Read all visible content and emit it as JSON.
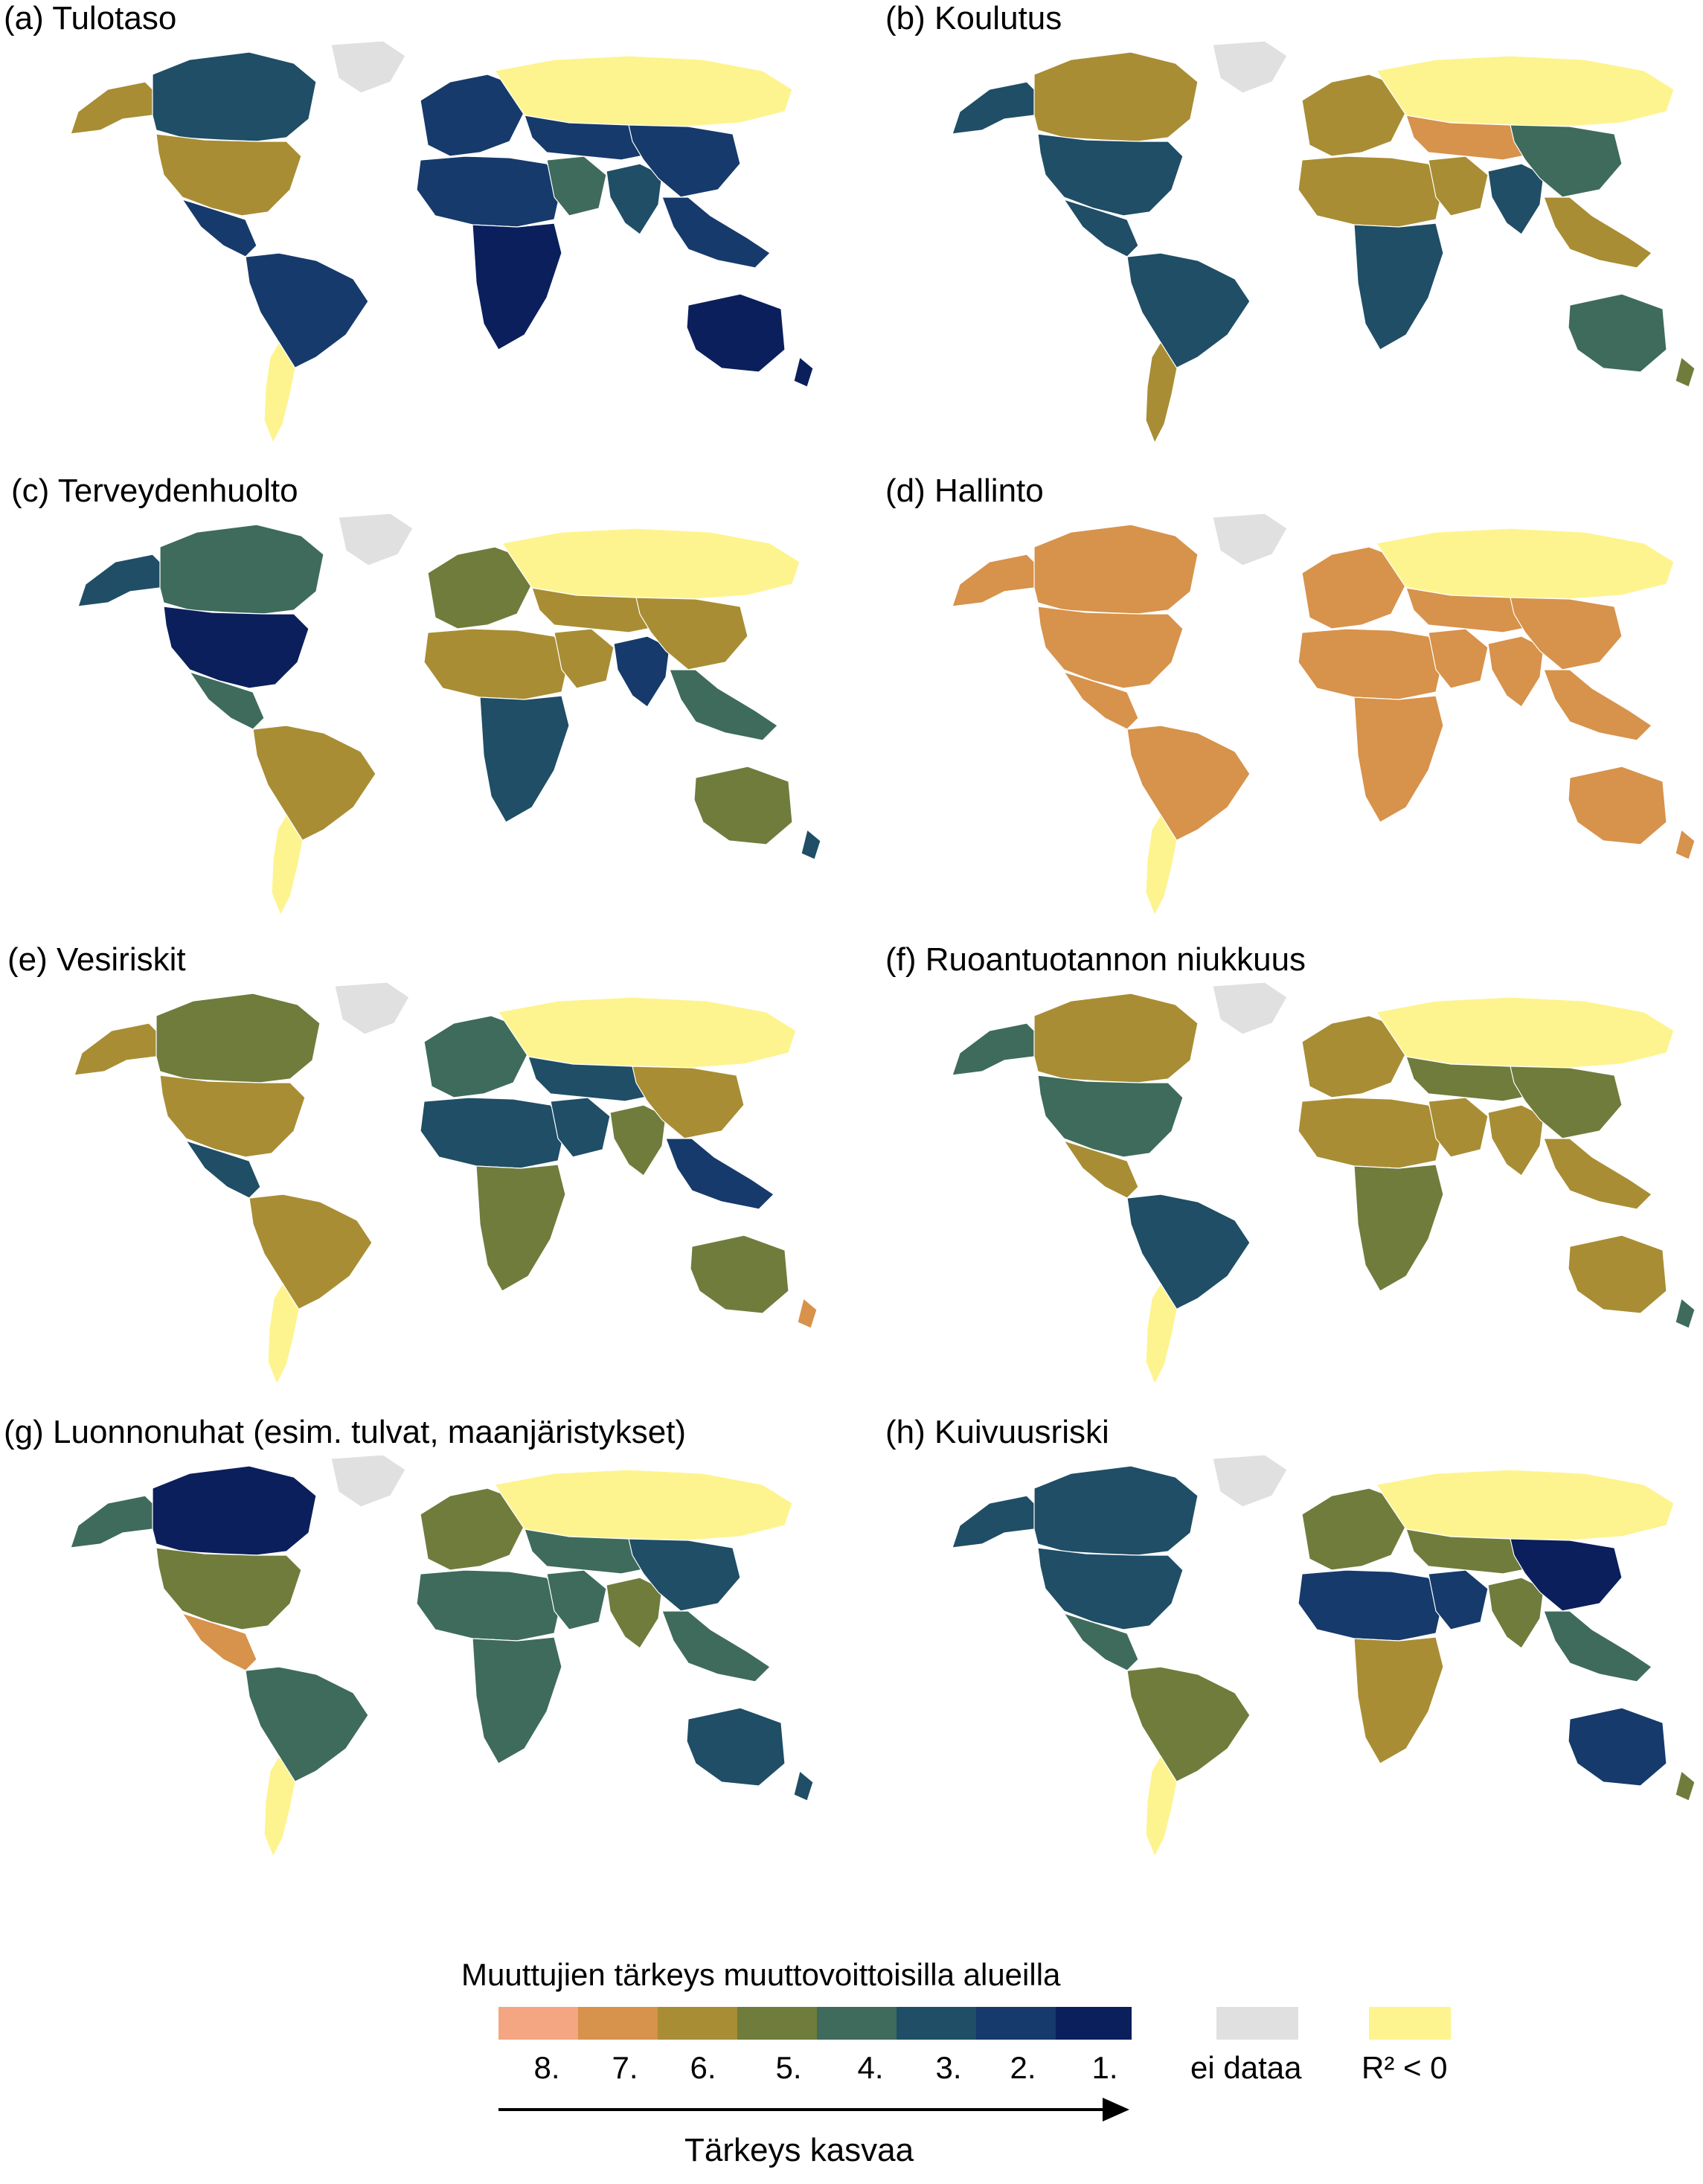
{
  "colors": {
    "rank_8": "#f4a582",
    "rank_7": "#d7924b",
    "rank_6": "#a88d34",
    "rank_5": "#6f7c3c",
    "rank_4": "#3e6b5c",
    "rank_3": "#1f4e66",
    "rank_2": "#163a6b",
    "rank_1": "#0b1f5c",
    "no_data": "#e0e0e0",
    "r2_negative": "#fdf48f",
    "ocean_bg": "#ffffff"
  },
  "panels": [
    {
      "title": "(a) Tulotaso",
      "regions": {
        "na": "rank_6",
        "alaska": "rank_6",
        "canada": "rank_3",
        "greenland": "no_data",
        "mexico": "rank_2",
        "sa_north": "rank_2",
        "sa_south": "r2_negative",
        "europe": "rank_2",
        "russia": "r2_negative",
        "africa_north": "rank_2",
        "africa_south": "rank_1",
        "mideast": "rank_4",
        "asia_central": "rank_2",
        "india": "rank_3",
        "china": "rank_2",
        "seasia": "rank_2",
        "australia": "rank_1",
        "nz": "rank_1"
      }
    },
    {
      "title": "(b) Koulutus",
      "regions": {
        "na": "rank_3",
        "alaska": "rank_3",
        "canada": "rank_6",
        "greenland": "no_data",
        "mexico": "rank_3",
        "sa_north": "rank_3",
        "sa_south": "rank_6",
        "europe": "rank_6",
        "russia": "r2_negative",
        "africa_north": "rank_6",
        "africa_south": "rank_3",
        "mideast": "rank_6",
        "asia_central": "rank_7",
        "india": "rank_3",
        "china": "rank_4",
        "seasia": "rank_6",
        "australia": "rank_4",
        "nz": "rank_5"
      }
    },
    {
      "title": "(c) Terveydenhuolto",
      "regions": {
        "na": "rank_1",
        "alaska": "rank_3",
        "canada": "rank_4",
        "greenland": "no_data",
        "mexico": "rank_4",
        "sa_north": "rank_6",
        "sa_south": "r2_negative",
        "europe": "rank_5",
        "russia": "r2_negative",
        "africa_north": "rank_6",
        "africa_south": "rank_3",
        "mideast": "rank_6",
        "asia_central": "rank_6",
        "india": "rank_2",
        "china": "rank_6",
        "seasia": "rank_4",
        "australia": "rank_5",
        "nz": "rank_3"
      }
    },
    {
      "title": "(d) Hallinto",
      "regions": {
        "na": "rank_7",
        "alaska": "rank_7",
        "canada": "rank_7",
        "greenland": "no_data",
        "mexico": "rank_7",
        "sa_north": "rank_7",
        "sa_south": "r2_negative",
        "europe": "rank_7",
        "russia": "r2_negative",
        "africa_north": "rank_7",
        "africa_south": "rank_7",
        "mideast": "rank_7",
        "asia_central": "rank_7",
        "india": "rank_7",
        "china": "rank_7",
        "seasia": "rank_7",
        "australia": "rank_7",
        "nz": "rank_7"
      }
    },
    {
      "title": "(e) Vesiriskit",
      "regions": {
        "na": "rank_6",
        "alaska": "rank_6",
        "canada": "rank_5",
        "greenland": "no_data",
        "mexico": "rank_3",
        "sa_north": "rank_6",
        "sa_south": "r2_negative",
        "europe": "rank_4",
        "russia": "r2_negative",
        "africa_north": "rank_3",
        "africa_south": "rank_5",
        "mideast": "rank_3",
        "asia_central": "rank_3",
        "india": "rank_5",
        "china": "rank_6",
        "seasia": "rank_2",
        "australia": "rank_5",
        "nz": "rank_7"
      }
    },
    {
      "title": "(f) Ruoantuotannon niukkuus",
      "regions": {
        "na": "rank_4",
        "alaska": "rank_4",
        "canada": "rank_6",
        "greenland": "no_data",
        "mexico": "rank_6",
        "sa_north": "rank_3",
        "sa_south": "r2_negative",
        "europe": "rank_6",
        "russia": "r2_negative",
        "africa_north": "rank_6",
        "africa_south": "rank_5",
        "mideast": "rank_6",
        "asia_central": "rank_5",
        "india": "rank_6",
        "china": "rank_5",
        "seasia": "rank_6",
        "australia": "rank_6",
        "nz": "rank_4"
      }
    },
    {
      "title": "(g) Luonnonuhat (esim. tulvat, maanjäristykset)",
      "regions": {
        "na": "rank_5",
        "alaska": "rank_4",
        "canada": "rank_1",
        "greenland": "no_data",
        "mexico": "rank_7",
        "sa_north": "rank_4",
        "sa_south": "r2_negative",
        "europe": "rank_5",
        "russia": "r2_negative",
        "africa_north": "rank_4",
        "africa_south": "rank_4",
        "mideast": "rank_4",
        "asia_central": "rank_4",
        "india": "rank_5",
        "china": "rank_3",
        "seasia": "rank_4",
        "australia": "rank_3",
        "nz": "rank_3"
      }
    },
    {
      "title": "(h) Kuivuusriski",
      "regions": {
        "na": "rank_3",
        "alaska": "rank_3",
        "canada": "rank_3",
        "greenland": "no_data",
        "mexico": "rank_4",
        "sa_north": "rank_5",
        "sa_south": "r2_negative",
        "europe": "rank_5",
        "russia": "r2_negative",
        "africa_north": "rank_2",
        "africa_south": "rank_6",
        "mideast": "rank_2",
        "asia_central": "rank_5",
        "india": "rank_5",
        "china": "rank_1",
        "seasia": "rank_4",
        "australia": "rank_2",
        "nz": "rank_5"
      }
    }
  ],
  "legend": {
    "title": "Muuttujien tärkeys muuttovoittoisilla alueilla",
    "ranks": [
      {
        "label": "8.",
        "color_key": "rank_8"
      },
      {
        "label": "7.",
        "color_key": "rank_7"
      },
      {
        "label": "6.",
        "color_key": "rank_6"
      },
      {
        "label": "5.",
        "color_key": "rank_5"
      },
      {
        "label": "4.",
        "color_key": "rank_4"
      },
      {
        "label": "3.",
        "color_key": "rank_3"
      },
      {
        "label": "2.",
        "color_key": "rank_2"
      },
      {
        "label": "1.",
        "color_key": "rank_1"
      }
    ],
    "no_data_label": "ei dataa",
    "r2_label": "R² < 0",
    "arrow_label": "Tärkeys kasvaa"
  }
}
